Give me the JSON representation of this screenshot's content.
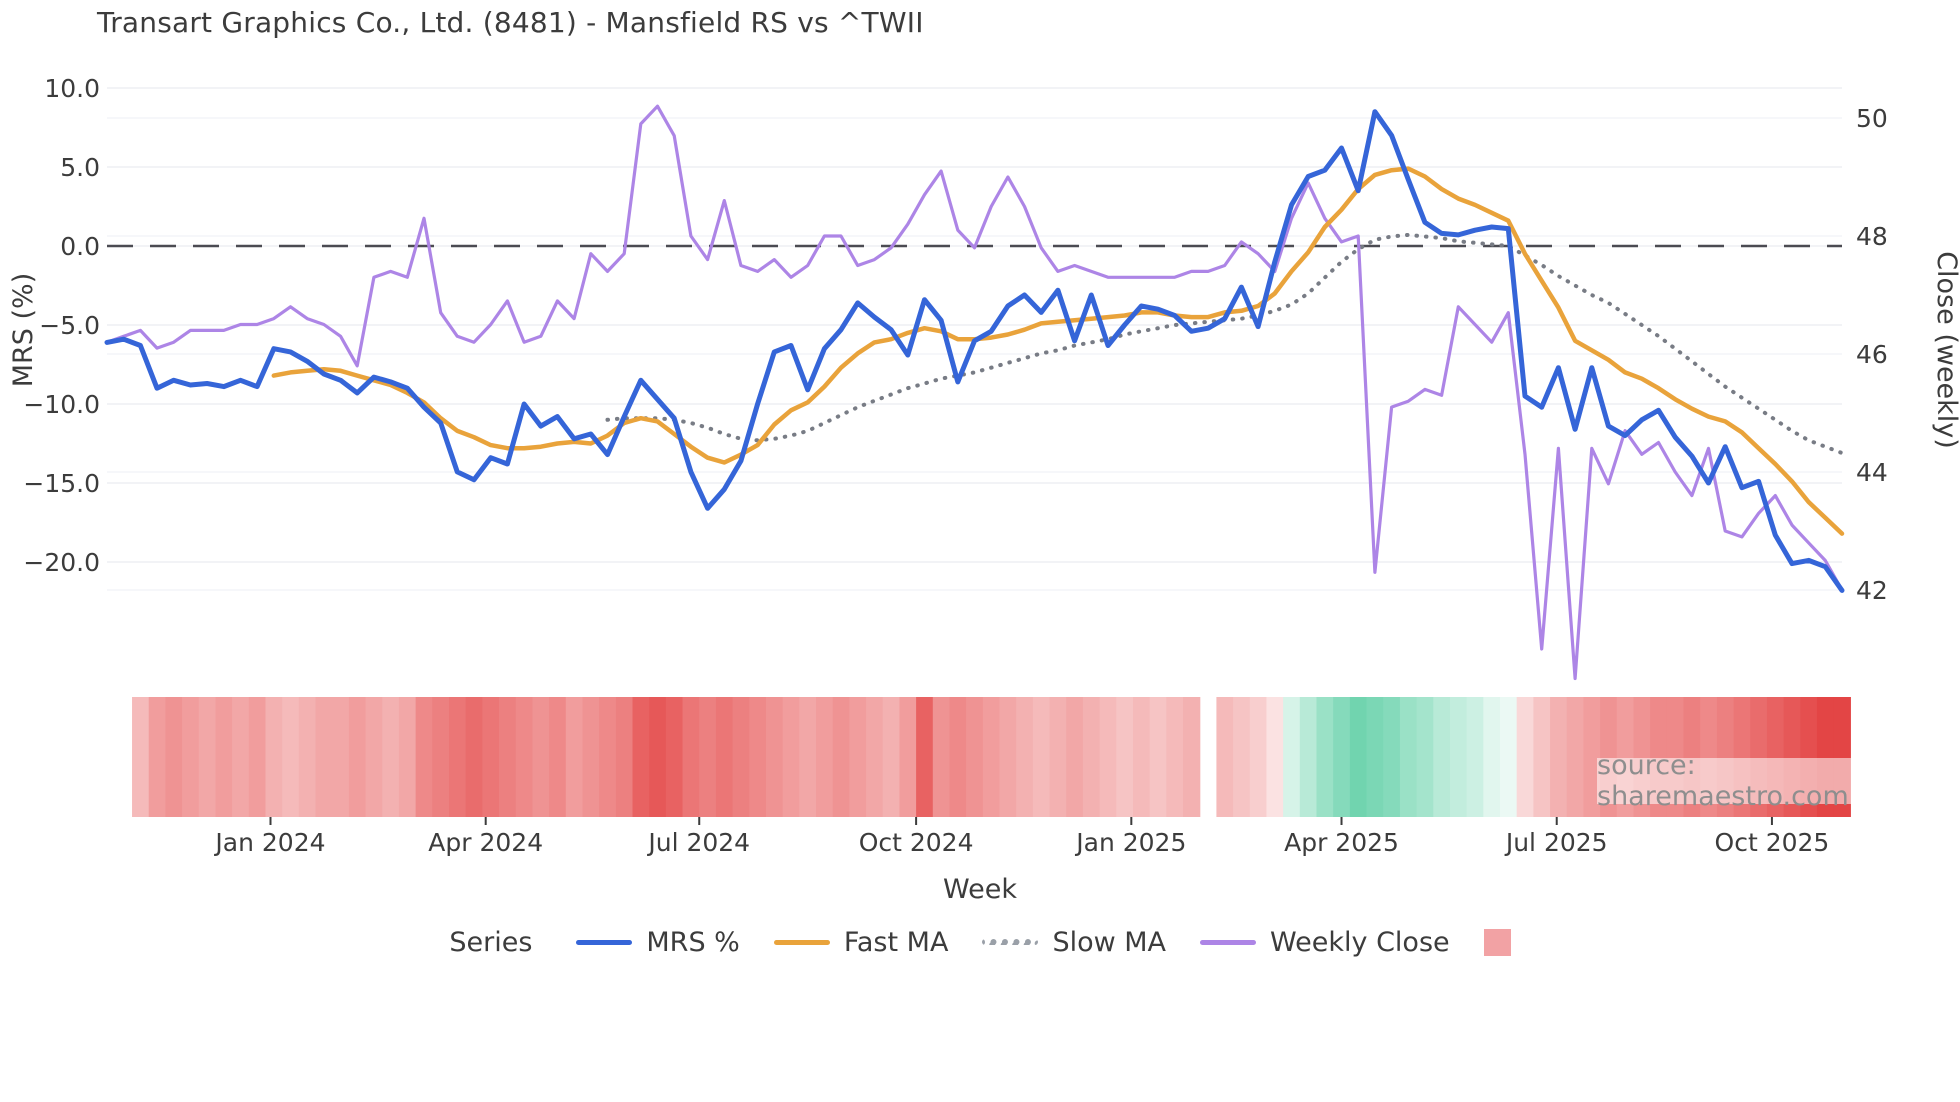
{
  "title": "Transart Graphics Co., Ltd. (8481) - Mansfield RS vs ^TWII",
  "source": "source: sharemaestro.com",
  "colors": {
    "mrs": "#3565d8",
    "fast_ma": "#e9a33b",
    "slow_ma": "#787c85",
    "weekly_close": "#ad85e6",
    "zero_line": "#4b4b52",
    "grid": "#edeff3",
    "heat_red": "#e23b3b",
    "heat_green": "#34c28f",
    "legend_swatch": "#f2a2a4",
    "text": "#3c3c3c"
  },
  "legend": {
    "title": "Series",
    "items": [
      {
        "label": "MRS %",
        "color": "#3565d8",
        "style": "solid"
      },
      {
        "label": "Fast MA",
        "color": "#e9a33b",
        "style": "solid"
      },
      {
        "label": "Slow MA",
        "color": "#9aa0a8",
        "style": "dotted"
      },
      {
        "label": "Weekly Close",
        "color": "#ad85e6",
        "style": "solid"
      },
      {
        "label": "",
        "color": "#f2a2a4",
        "style": "square"
      }
    ]
  },
  "axes": {
    "left": {
      "label": "MRS (%)",
      "tick_values": [
        10,
        5,
        0,
        -5,
        -10,
        -15,
        -20
      ],
      "tick_labels": [
        "10.0",
        "5.0",
        "0.0",
        "−5.0",
        "−10.0",
        "−15.0",
        "−20.0"
      ]
    },
    "right": {
      "label": "Close (weekly)",
      "tick_values": [
        50,
        48,
        46,
        44,
        42
      ],
      "tick_labels": [
        "50",
        "48",
        "46",
        "44",
        "42"
      ]
    },
    "x": {
      "label": "Week",
      "ticks": [
        {
          "label": "Jan 2024",
          "week": 9.8
        },
        {
          "label": "Apr 2024",
          "week": 22.7
        },
        {
          "label": "Jul 2024",
          "week": 35.5
        },
        {
          "label": "Oct 2024",
          "week": 48.5
        },
        {
          "label": "Jan 2025",
          "week": 61.4
        },
        {
          "label": "Apr 2025",
          "week": 74.0
        },
        {
          "label": "Jul 2025",
          "week": 86.9
        },
        {
          "label": "Oct 2025",
          "week": 99.8
        }
      ]
    }
  },
  "chart_data": {
    "type": "line",
    "x_unit": "week",
    "n_weeks": 105,
    "x_range_labels": [
      "Nov 2023",
      "Nov 2025"
    ],
    "left_ylim": [
      -22.5,
      10.5
    ],
    "right_ylim": [
      41.5,
      50.5
    ],
    "zero_reference_line": 0,
    "series": [
      {
        "name": "MRS %",
        "axis": "left",
        "style": "solid",
        "color": "#3565d8",
        "width": 5,
        "values": [
          -6.1,
          -5.9,
          -6.3,
          -9.0,
          -8.5,
          -8.8,
          -8.7,
          -8.9,
          -8.5,
          -8.9,
          -6.5,
          -6.7,
          -7.3,
          -8.1,
          -8.5,
          -9.3,
          -8.3,
          -8.6,
          -9.0,
          -10.2,
          -11.2,
          -14.3,
          -14.8,
          -13.4,
          -13.8,
          -10.0,
          -11.4,
          -10.8,
          -12.2,
          -11.9,
          -13.2,
          -10.8,
          -8.5,
          -9.7,
          -10.9,
          -14.3,
          -16.6,
          -15.4,
          -13.6,
          -10.0,
          -6.7,
          -6.3,
          -9.1,
          -6.5,
          -5.3,
          -3.6,
          -4.5,
          -5.3,
          -6.9,
          -3.4,
          -4.7,
          -8.6,
          -6.0,
          -5.4,
          -3.8,
          -3.1,
          -4.2,
          -2.8,
          -6.0,
          -3.1,
          -6.3,
          -5.0,
          -3.8,
          -4.0,
          -4.4,
          -5.4,
          -5.2,
          -4.6,
          -2.6,
          -5.1,
          -1.0,
          2.6,
          4.4,
          4.8,
          6.2,
          3.5,
          8.5,
          7.0,
          4.2,
          1.5,
          0.8,
          0.7,
          1.0,
          1.2,
          1.1,
          -9.5,
          -10.2,
          -7.7,
          -11.6,
          -7.7,
          -11.4,
          -12.0,
          -11.0,
          -10.4,
          -12.1,
          -13.3,
          -15.0,
          -12.7,
          -15.3,
          -14.9,
          -18.3,
          -20.1,
          -19.9,
          -20.3,
          -21.8
        ]
      },
      {
        "name": "Fast MA",
        "axis": "left",
        "style": "solid",
        "color": "#e9a33b",
        "width": 4.5,
        "values": [
          null,
          null,
          null,
          null,
          null,
          null,
          null,
          null,
          null,
          null,
          -8.2,
          -8.0,
          -7.9,
          -7.8,
          -7.9,
          -8.2,
          -8.5,
          -8.8,
          -9.3,
          -9.9,
          -10.9,
          -11.7,
          -12.1,
          -12.6,
          -12.8,
          -12.8,
          -12.7,
          -12.5,
          -12.4,
          -12.5,
          -12.0,
          -11.2,
          -10.9,
          -11.1,
          -11.9,
          -12.7,
          -13.4,
          -13.7,
          -13.2,
          -12.6,
          -11.3,
          -10.4,
          -9.9,
          -8.9,
          -7.7,
          -6.8,
          -6.1,
          -5.9,
          -5.5,
          -5.2,
          -5.4,
          -5.9,
          -5.9,
          -5.8,
          -5.6,
          -5.3,
          -4.9,
          -4.8,
          -4.7,
          -4.6,
          -4.5,
          -4.4,
          -4.2,
          -4.2,
          -4.4,
          -4.5,
          -4.5,
          -4.2,
          -4.1,
          -3.8,
          -3.0,
          -1.6,
          -0.4,
          1.2,
          2.3,
          3.6,
          4.5,
          4.8,
          4.9,
          4.4,
          3.6,
          3.0,
          2.6,
          2.1,
          1.6,
          -0.5,
          -2.2,
          -3.9,
          -6.0,
          -6.6,
          -7.2,
          -8.0,
          -8.4,
          -9.0,
          -9.7,
          -10.3,
          -10.8,
          -11.1,
          -11.8,
          -12.8,
          -13.8,
          -14.9,
          -16.2,
          -17.2,
          -18.2
        ]
      },
      {
        "name": "Slow MA",
        "axis": "left",
        "style": "dotted",
        "color": "#787c85",
        "width": 4,
        "values": [
          null,
          null,
          null,
          null,
          null,
          null,
          null,
          null,
          null,
          null,
          null,
          null,
          null,
          null,
          null,
          null,
          null,
          null,
          null,
          null,
          null,
          null,
          null,
          null,
          null,
          null,
          null,
          null,
          null,
          null,
          -11.0,
          -10.9,
          -10.9,
          -10.9,
          -11.0,
          -11.2,
          -11.5,
          -11.9,
          -12.2,
          -12.3,
          -12.2,
          -12.0,
          -11.7,
          -11.2,
          -10.7,
          -10.2,
          -9.8,
          -9.4,
          -9.0,
          -8.7,
          -8.4,
          -8.2,
          -8.0,
          -7.7,
          -7.4,
          -7.1,
          -6.8,
          -6.6,
          -6.3,
          -6.1,
          -5.9,
          -5.6,
          -5.4,
          -5.2,
          -5.0,
          -4.9,
          -4.8,
          -4.7,
          -4.6,
          -4.4,
          -4.1,
          -3.7,
          -3.0,
          -2.0,
          -1.0,
          -0.2,
          0.4,
          0.6,
          0.7,
          0.6,
          0.5,
          0.3,
          0.2,
          0.1,
          0.0,
          -0.6,
          -1.2,
          -1.9,
          -2.5,
          -3.1,
          -3.6,
          -4.3,
          -5.0,
          -5.7,
          -6.5,
          -7.3,
          -8.1,
          -8.9,
          -9.6,
          -10.3,
          -11.0,
          -11.7,
          -12.3,
          -12.7,
          -13.1
        ]
      },
      {
        "name": "Weekly Close",
        "axis": "right",
        "style": "solid",
        "color": "#ad85e6",
        "width": 3.2,
        "values": [
          46.2,
          46.3,
          46.4,
          46.1,
          46.2,
          46.4,
          46.4,
          46.4,
          46.5,
          46.5,
          46.6,
          46.8,
          46.6,
          46.5,
          46.3,
          45.8,
          47.3,
          47.4,
          47.3,
          48.3,
          46.7,
          46.3,
          46.2,
          46.5,
          46.9,
          46.2,
          46.3,
          46.9,
          46.6,
          47.7,
          47.4,
          47.7,
          49.9,
          50.2,
          49.7,
          48.0,
          47.6,
          48.6,
          47.5,
          47.4,
          47.6,
          47.3,
          47.5,
          48.0,
          48.0,
          47.5,
          47.6,
          47.8,
          48.2,
          48.7,
          49.1,
          48.1,
          47.8,
          48.5,
          49.0,
          48.5,
          47.8,
          47.4,
          47.5,
          47.4,
          47.3,
          47.3,
          47.3,
          47.3,
          47.3,
          47.4,
          47.4,
          47.5,
          47.9,
          47.7,
          47.4,
          48.3,
          48.9,
          48.3,
          47.9,
          48.0,
          42.3,
          45.1,
          45.2,
          45.4,
          45.3,
          46.8,
          46.5,
          46.2,
          46.7,
          44.3,
          41.0,
          44.4,
          40.5,
          44.4,
          43.8,
          44.7,
          44.3,
          44.5,
          44.0,
          43.6,
          44.4,
          43.0,
          42.9,
          43.3,
          43.6,
          43.1,
          42.8,
          42.5,
          42.0
        ]
      }
    ],
    "heatmap": {
      "description": "weekly strength heat strip, red negative / green positive",
      "values": [
        null,
        null,
        -0.35,
        -0.5,
        -0.55,
        -0.5,
        -0.45,
        -0.5,
        -0.45,
        -0.5,
        -0.4,
        -0.35,
        -0.4,
        -0.45,
        -0.45,
        -0.5,
        -0.45,
        -0.4,
        -0.45,
        -0.6,
        -0.65,
        -0.7,
        -0.75,
        -0.7,
        -0.65,
        -0.6,
        -0.55,
        -0.6,
        -0.5,
        -0.55,
        -0.6,
        -0.65,
        -0.8,
        -0.85,
        -0.8,
        -0.7,
        -0.65,
        -0.7,
        -0.65,
        -0.6,
        -0.55,
        -0.5,
        -0.45,
        -0.5,
        -0.55,
        -0.5,
        -0.45,
        -0.4,
        -0.5,
        -0.8,
        -0.55,
        -0.6,
        -0.55,
        -0.5,
        -0.45,
        -0.4,
        -0.35,
        -0.4,
        -0.45,
        -0.4,
        -0.35,
        -0.3,
        -0.35,
        -0.3,
        -0.35,
        -0.4,
        null,
        -0.35,
        -0.3,
        -0.25,
        -0.15,
        0.2,
        0.35,
        0.5,
        0.6,
        0.7,
        0.65,
        0.6,
        0.5,
        0.45,
        0.35,
        0.3,
        0.25,
        0.15,
        0.1,
        -0.2,
        -0.3,
        -0.4,
        -0.45,
        -0.5,
        -0.55,
        -0.5,
        -0.55,
        -0.6,
        -0.6,
        -0.65,
        -0.6,
        -0.65,
        -0.7,
        -0.75,
        -0.8,
        -0.85,
        -0.9,
        -0.95,
        -0.95
      ]
    }
  }
}
